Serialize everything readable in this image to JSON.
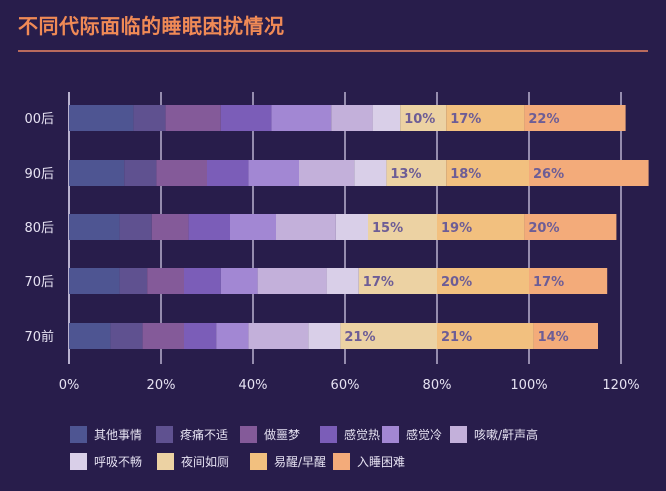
{
  "title": "不同代际面临的睡眠困扰情况",
  "colors": {
    "background": "#281d4b",
    "title": "#f08a56",
    "rule": "#b96a5d",
    "grid": "#b9b2cf",
    "text": "#e6e2f2",
    "data_label": "#6d5d96"
  },
  "chart_data": {
    "type": "bar",
    "orientation": "horizontal",
    "stacked": true,
    "title": "不同代际面临的睡眠困扰情况",
    "xlabel": "",
    "ylabel": "",
    "xlim": [
      0,
      120
    ],
    "x_ticks": [
      "0%",
      "20%",
      "40%",
      "60%",
      "80%",
      "100%",
      "120%"
    ],
    "x_tick_values": [
      0,
      20,
      40,
      60,
      80,
      100,
      120
    ],
    "grid": true,
    "legend_position": "bottom",
    "categories": [
      "00后",
      "90后",
      "80后",
      "70后",
      "70前"
    ],
    "series": [
      {
        "name": "其他事情",
        "color": "#4e5592",
        "values": [
          14,
          12,
          11,
          11,
          9
        ]
      },
      {
        "name": "疼痛不适",
        "color": "#5f5190",
        "values": [
          7,
          7,
          7,
          6,
          7
        ]
      },
      {
        "name": "做噩梦",
        "color": "#845a99",
        "values": [
          12,
          11,
          8,
          8,
          9
        ]
      },
      {
        "name": "感觉热",
        "color": "#7b5db8",
        "values": [
          11,
          9,
          9,
          8,
          7
        ]
      },
      {
        "name": "感觉冷",
        "color": "#a287d3",
        "values": [
          13,
          11,
          10,
          8,
          7
        ]
      },
      {
        "name": "咳嗽/鼾声高",
        "color": "#c3b0da",
        "values": [
          9,
          12,
          13,
          15,
          13
        ]
      },
      {
        "name": "呼吸不畅",
        "color": "#d9cfe8",
        "values": [
          6,
          7,
          7,
          7,
          7
        ]
      },
      {
        "name": "夜间如厕",
        "color": "#ecd2a3",
        "values": [
          10,
          13,
          15,
          17,
          21
        ],
        "labels": [
          "10%",
          "13%",
          "15%",
          "17%",
          "21%"
        ]
      },
      {
        "name": "易醒/早醒",
        "color": "#f2c07f",
        "values": [
          17,
          18,
          19,
          20,
          21
        ],
        "labels": [
          "17%",
          "18%",
          "19%",
          "20%",
          "21%"
        ]
      },
      {
        "name": "入睡困难",
        "color": "#f3ab7a",
        "values": [
          22,
          26,
          20,
          17,
          14
        ],
        "labels": [
          "22%",
          "26%",
          "20%",
          "17%",
          "14%"
        ]
      }
    ]
  }
}
